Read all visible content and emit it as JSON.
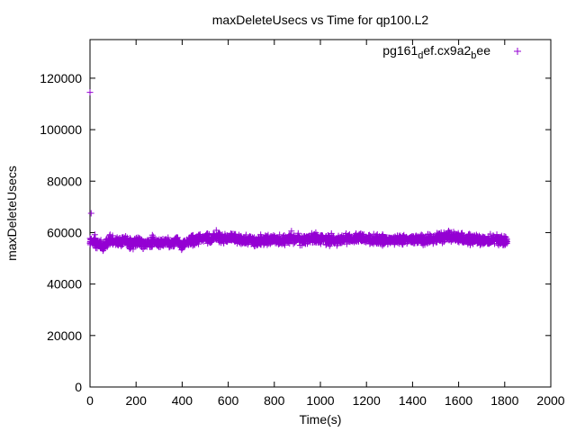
{
  "chart_data": {
    "type": "scatter",
    "title": "maxDeleteUsecs vs Time for qp100.L2",
    "xlabel": "Time(s)",
    "ylabel": "maxDeleteUsecs",
    "xlim": [
      0,
      2000
    ],
    "ylim": [
      0,
      135000
    ],
    "x_ticks": [
      0,
      200,
      400,
      600,
      800,
      1000,
      1200,
      1400,
      1600,
      1800,
      2000
    ],
    "y_ticks": [
      0,
      20000,
      40000,
      60000,
      80000,
      100000,
      120000
    ],
    "x_tick_labels": [
      "0",
      "200",
      "400",
      "600",
      "800",
      "1000",
      "1200",
      "1400",
      "1600",
      "1800",
      "2000"
    ],
    "y_tick_labels": [
      "0",
      "20000",
      "40000",
      "60000",
      "80000",
      "100000",
      "120000"
    ],
    "grid": false,
    "legend_position": "top-right",
    "marker": "plus",
    "series": [
      {
        "name_parts": [
          "pg161",
          "d",
          "ef.cx9a2",
          "b",
          "ee"
        ],
        "color": "#9400d3",
        "points": [
          [
            0,
            114500
          ],
          [
            5,
            67500
          ],
          [
            3,
            56500
          ],
          [
            10,
            56000
          ],
          [
            20,
            57000
          ],
          [
            30,
            55500
          ],
          [
            45,
            56000
          ],
          [
            60,
            54500
          ],
          [
            80,
            56500
          ],
          [
            100,
            57500
          ],
          [
            125,
            56000
          ],
          [
            150,
            57000
          ],
          [
            175,
            55500
          ],
          [
            200,
            56500
          ],
          [
            225,
            55500
          ],
          [
            250,
            56000
          ],
          [
            275,
            56500
          ],
          [
            300,
            56000
          ],
          [
            325,
            57000
          ],
          [
            350,
            55500
          ],
          [
            375,
            57000
          ],
          [
            400,
            55000
          ],
          [
            425,
            56500
          ],
          [
            450,
            57000
          ],
          [
            475,
            57500
          ],
          [
            500,
            58000
          ],
          [
            525,
            57500
          ],
          [
            550,
            58500
          ],
          [
            575,
            57500
          ],
          [
            600,
            57500
          ],
          [
            625,
            58000
          ],
          [
            650,
            57000
          ],
          [
            675,
            57500
          ],
          [
            700,
            57500
          ],
          [
            725,
            56500
          ],
          [
            750,
            57000
          ],
          [
            775,
            57500
          ],
          [
            800,
            57500
          ],
          [
            825,
            57000
          ],
          [
            850,
            57500
          ],
          [
            875,
            58000
          ],
          [
            900,
            57500
          ],
          [
            925,
            57000
          ],
          [
            950,
            57500
          ],
          [
            975,
            58000
          ],
          [
            1000,
            57500
          ],
          [
            1025,
            57000
          ],
          [
            1050,
            57500
          ],
          [
            1075,
            57000
          ],
          [
            1100,
            57500
          ],
          [
            1125,
            58000
          ],
          [
            1150,
            57500
          ],
          [
            1175,
            58000
          ],
          [
            1200,
            57500
          ],
          [
            1225,
            57000
          ],
          [
            1250,
            57500
          ],
          [
            1275,
            57500
          ],
          [
            1300,
            57000
          ],
          [
            1325,
            57500
          ],
          [
            1350,
            57000
          ],
          [
            1375,
            57500
          ],
          [
            1400,
            57500
          ],
          [
            1425,
            57500
          ],
          [
            1450,
            57000
          ],
          [
            1475,
            57500
          ],
          [
            1500,
            57500
          ],
          [
            1525,
            58000
          ],
          [
            1550,
            58500
          ],
          [
            1575,
            58500
          ],
          [
            1600,
            58500
          ],
          [
            1625,
            57500
          ],
          [
            1650,
            57000
          ],
          [
            1675,
            57500
          ],
          [
            1700,
            57000
          ],
          [
            1725,
            57000
          ],
          [
            1750,
            57500
          ],
          [
            1775,
            57000
          ],
          [
            1800,
            57000
          ],
          [
            1810,
            56500
          ]
        ]
      }
    ]
  }
}
